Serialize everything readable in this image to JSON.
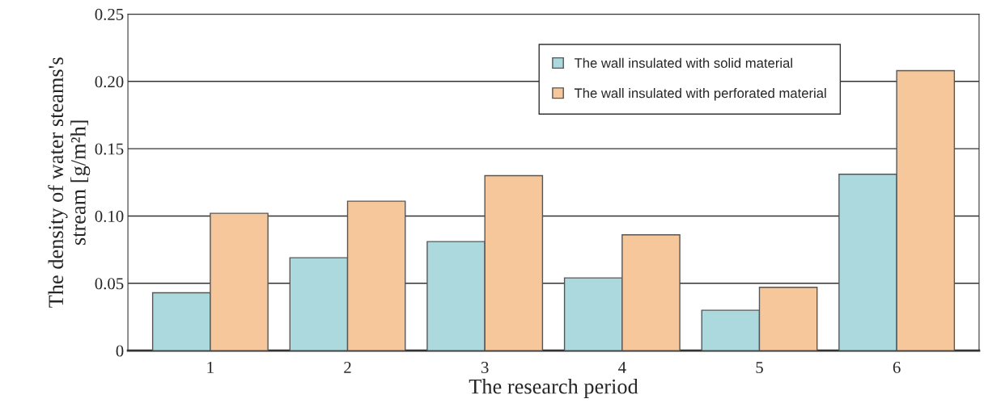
{
  "chart_data": {
    "type": "bar",
    "xlabel": "The research period",
    "ylabel": "The density of water steams's\nstream [g/m²h]",
    "categories": [
      "1",
      "2",
      "3",
      "4",
      "5",
      "6"
    ],
    "series": [
      {
        "name": "The wall insulated with solid material",
        "color": "#abd9de",
        "values": [
          0.043,
          0.069,
          0.081,
          0.054,
          0.03,
          0.131
        ]
      },
      {
        "name": "The wall insulated with perforated material",
        "color": "#f6c79a",
        "values": [
          0.102,
          0.111,
          0.13,
          0.086,
          0.047,
          0.208
        ]
      }
    ],
    "ylim": [
      0,
      0.25
    ],
    "yticks": [
      {
        "value": 0,
        "label": "0"
      },
      0.05,
      {
        "value": 0.1,
        "label": "0.10"
      },
      0.15,
      {
        "value": 0.2,
        "label": "0.20"
      },
      0.25
    ],
    "grid": "y",
    "legend": "top"
  }
}
